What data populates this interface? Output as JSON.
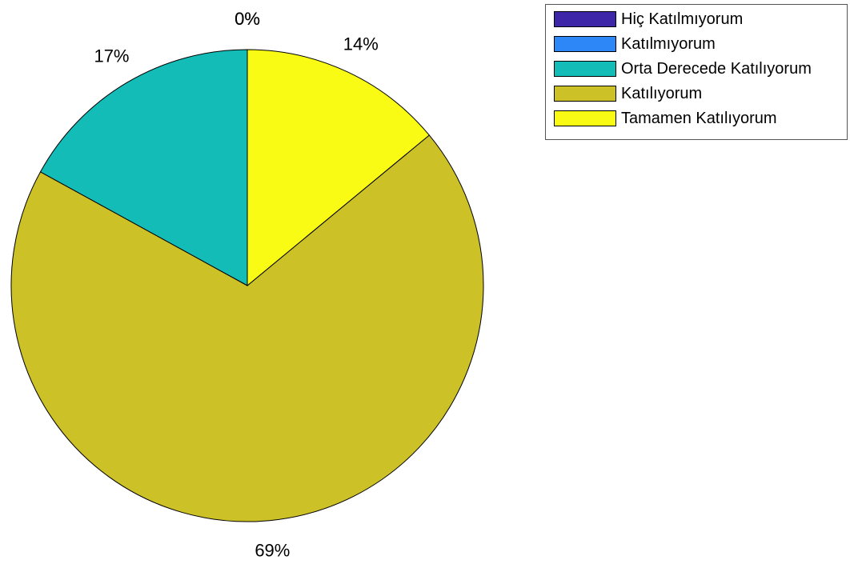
{
  "chart_data": {
    "type": "pie",
    "categories": [
      "Hiç Katılmıyorum",
      "Katılmıyorum",
      "Orta Derecede Katılıyorum",
      "Katılıyorum",
      "Tamamen Katılıyorum"
    ],
    "values": [
      0,
      0,
      17,
      69,
      14
    ],
    "labels": [
      "0%",
      "0%",
      "17%",
      "69%",
      "14%"
    ],
    "colors": [
      "#3e26a8",
      "#2e87f7",
      "#14bcb8",
      "#cdc128",
      "#f9fb15"
    ],
    "legend_position": "top-right"
  }
}
